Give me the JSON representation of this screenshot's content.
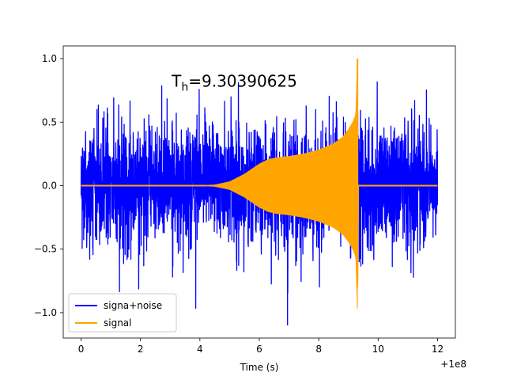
{
  "chart_data": {
    "type": "line",
    "title": "",
    "annotation": "T_h=9.30390625",
    "annotation_parts": {
      "base": "T",
      "sub": "h",
      "rest": "=9.30390625"
    },
    "xlabel": "Time (s)",
    "ylabel": "",
    "x_offset_label": "+1e8",
    "xlim": [
      -0.6,
      12.6
    ],
    "ylim": [
      -1.2,
      1.1
    ],
    "xticks": [
      0,
      2,
      4,
      6,
      8,
      10,
      12
    ],
    "xtick_labels": [
      "0",
      "2",
      "4",
      "6",
      "8",
      "10",
      "12"
    ],
    "yticks": [
      -1.0,
      -0.5,
      0.0,
      0.5,
      1.0
    ],
    "ytick_labels": [
      "−1.0",
      "−0.5",
      "0.0",
      "0.5",
      "1.0"
    ],
    "grid": false,
    "legend_position": "lower-left",
    "series": [
      {
        "name": "signa+noise",
        "color": "#0000ff",
        "description": "dense noisy signal",
        "x_range": [
          0.0,
          12.0
        ],
        "approx_envelope": 0.55,
        "peak_min": -1.1,
        "peak_max": 0.85
      },
      {
        "name": "signal",
        "color": "#ffa500",
        "description": "chirp envelope",
        "envelope": {
          "x": [
            0.0,
            4.0,
            4.5,
            5.0,
            5.5,
            6.0,
            6.3,
            6.6,
            7.0,
            7.5,
            8.0,
            8.5,
            8.8,
            9.0,
            9.15,
            9.25,
            9.3039,
            9.35,
            12.0
          ],
          "y": [
            0.0,
            0.0,
            0.005,
            0.03,
            0.09,
            0.17,
            0.205,
            0.22,
            0.23,
            0.25,
            0.28,
            0.33,
            0.38,
            0.44,
            0.5,
            0.56,
            1.0,
            0.0,
            0.0
          ]
        },
        "spike_min": -0.8
      }
    ]
  }
}
